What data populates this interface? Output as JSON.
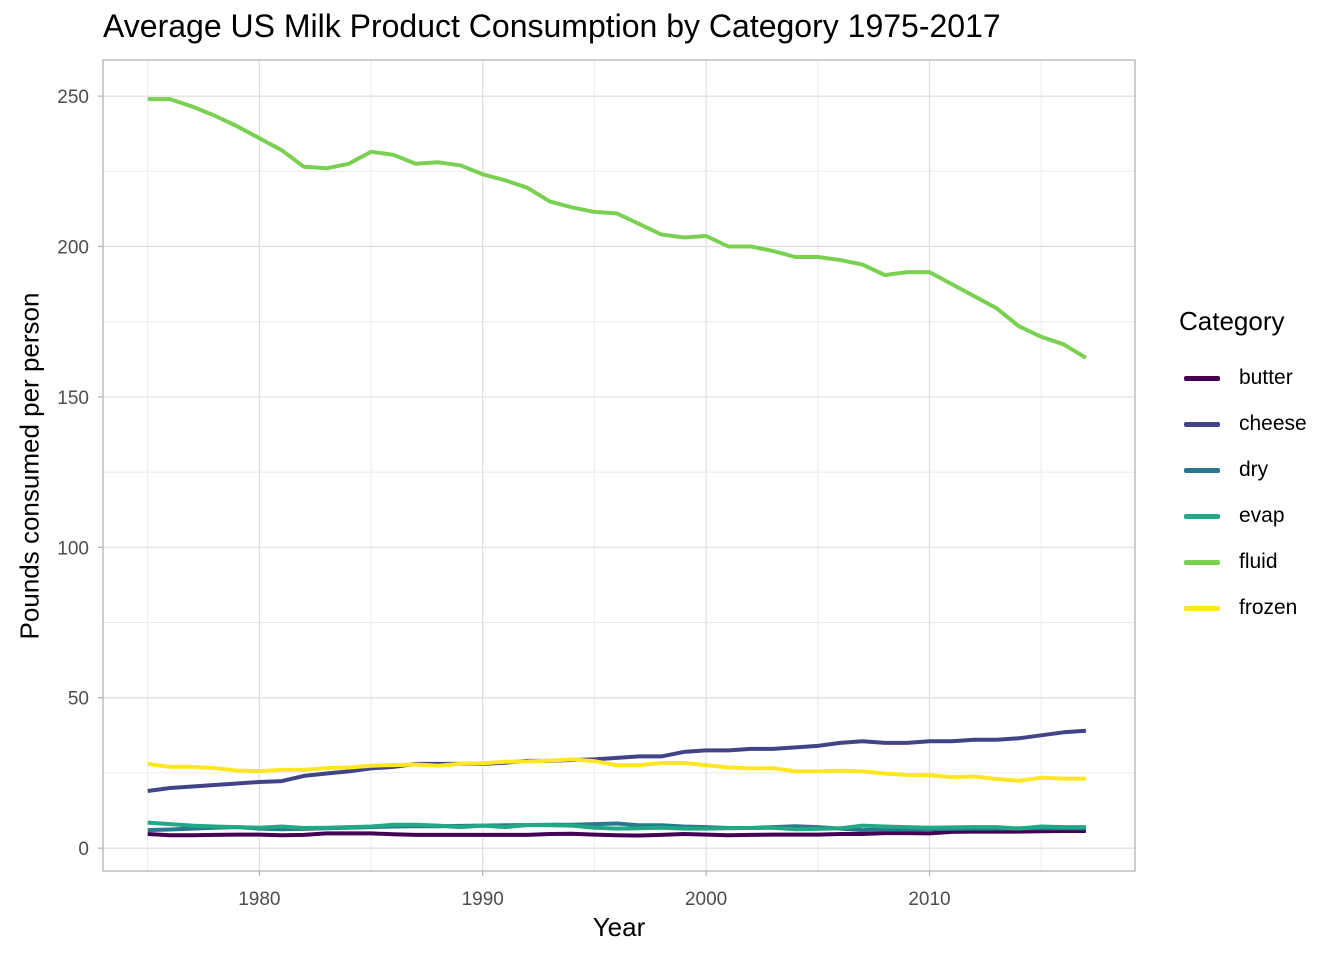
{
  "chart_data": {
    "type": "line",
    "title": "Average US Milk Product Consumption by Category 1975-2017",
    "xlabel": "Year",
    "ylabel": "Pounds consumed per person",
    "xlim": [
      1973,
      2019.2
    ],
    "ylim": [
      -7.6,
      262
    ],
    "x_ticks": [
      1980,
      1990,
      2000,
      2010
    ],
    "y_ticks": [
      0,
      50,
      100,
      150,
      200,
      250
    ],
    "grid": true,
    "legend": {
      "title": "Category",
      "position": "right"
    },
    "x": [
      1975,
      1976,
      1977,
      1978,
      1979,
      1980,
      1981,
      1982,
      1983,
      1984,
      1985,
      1986,
      1987,
      1988,
      1989,
      1990,
      1991,
      1992,
      1993,
      1994,
      1995,
      1996,
      1997,
      1998,
      1999,
      2000,
      2001,
      2002,
      2003,
      2004,
      2005,
      2006,
      2007,
      2008,
      2009,
      2010,
      2011,
      2012,
      2013,
      2014,
      2015,
      2016,
      2017
    ],
    "series": [
      {
        "name": "butter",
        "color": "#440154",
        "values": [
          4.7,
          4.3,
          4.3,
          4.4,
          4.5,
          4.5,
          4.3,
          4.4,
          4.9,
          4.9,
          4.9,
          4.6,
          4.4,
          4.4,
          4.4,
          4.4,
          4.4,
          4.4,
          4.7,
          4.8,
          4.5,
          4.3,
          4.2,
          4.4,
          4.7,
          4.5,
          4.3,
          4.4,
          4.5,
          4.5,
          4.5,
          4.7,
          4.7,
          5.0,
          5.0,
          4.9,
          5.4,
          5.5,
          5.5,
          5.5,
          5.6,
          5.7,
          5.7
        ]
      },
      {
        "name": "cheese",
        "color": "#414487",
        "values": [
          19.0,
          20.0,
          20.5,
          21.0,
          21.5,
          22.0,
          22.3,
          24.0,
          24.8,
          25.5,
          26.5,
          27.0,
          28.0,
          28.0,
          28.0,
          28.0,
          28.4,
          29.0,
          29.0,
          29.3,
          29.5,
          30.0,
          30.5,
          30.5,
          32.0,
          32.5,
          32.5,
          33.0,
          33.0,
          33.5,
          34.0,
          35.0,
          35.5,
          35.0,
          35.0,
          35.5,
          35.5,
          36.0,
          36.0,
          36.5,
          37.5,
          38.5,
          39.0
        ]
      },
      {
        "name": "dry",
        "color": "#2A788E",
        "values": [
          6.0,
          6.2,
          6.5,
          6.8,
          7.0,
          6.5,
          6.3,
          6.4,
          6.6,
          6.8,
          7.0,
          7.2,
          7.3,
          7.3,
          7.4,
          7.5,
          7.6,
          7.7,
          7.8,
          7.8,
          8.0,
          8.2,
          7.6,
          7.6,
          7.2,
          7.0,
          6.7,
          6.7,
          7.0,
          7.3,
          7.0,
          6.5,
          6.0,
          6.2,
          6.2,
          6.3,
          6.4,
          6.5,
          6.5,
          6.6,
          6.6,
          6.6,
          6.6
        ]
      },
      {
        "name": "evap",
        "color": "#22A884",
        "values": [
          8.5,
          8.0,
          7.5,
          7.2,
          7.0,
          6.8,
          7.2,
          6.7,
          6.8,
          7.0,
          7.2,
          7.8,
          7.8,
          7.5,
          7.0,
          7.5,
          7.0,
          7.7,
          7.6,
          7.5,
          6.8,
          6.5,
          6.6,
          6.8,
          6.5,
          6.5,
          6.6,
          6.7,
          6.8,
          6.3,
          6.4,
          6.6,
          7.5,
          7.2,
          7.0,
          6.8,
          6.9,
          7.0,
          7.0,
          6.5,
          7.2,
          7.0,
          7.0
        ]
      },
      {
        "name": "fluid",
        "color": "#7AD151",
        "values": [
          249,
          249,
          246.5,
          243.5,
          240,
          236,
          232,
          226.5,
          226,
          227.5,
          231.5,
          230.5,
          227.5,
          228,
          227,
          224,
          222,
          219.5,
          215,
          213,
          211.5,
          211,
          207.5,
          204,
          203,
          203.5,
          200,
          200,
          198.5,
          196.5,
          196.5,
          195.5,
          194,
          190.5,
          191.5,
          191.5,
          187.5,
          183.5,
          179.5,
          173.5,
          170,
          167.5,
          163
        ]
      },
      {
        "name": "frozen",
        "color": "#FDE725",
        "values": [
          28.0,
          27.0,
          27.0,
          26.6,
          25.8,
          25.6,
          26.0,
          26.0,
          26.6,
          26.8,
          27.4,
          27.6,
          27.8,
          27.4,
          28.0,
          28.2,
          28.7,
          28.8,
          29.1,
          29.5,
          28.9,
          27.6,
          27.6,
          28.3,
          28.3,
          27.6,
          26.8,
          26.5,
          26.6,
          25.5,
          25.5,
          25.7,
          25.5,
          24.8,
          24.3,
          24.2,
          23.6,
          23.8,
          23.0,
          22.4,
          23.4,
          23.1,
          23.1
        ]
      }
    ]
  }
}
